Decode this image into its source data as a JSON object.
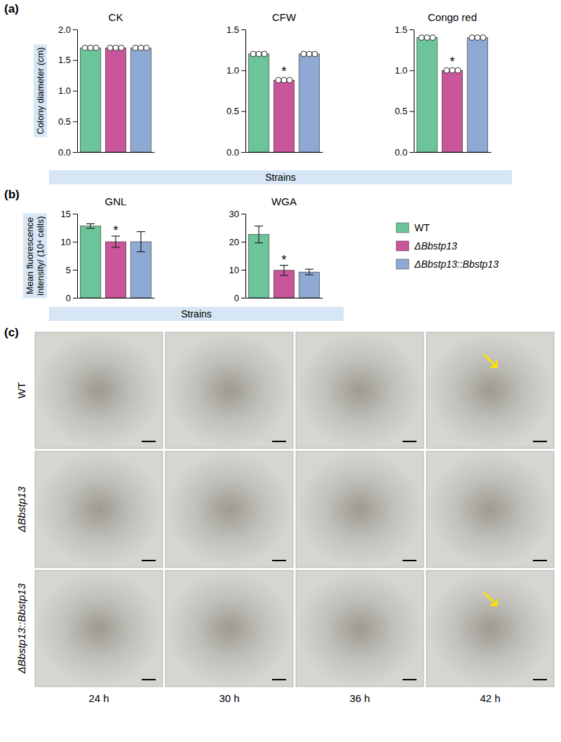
{
  "chart_data": [
    {
      "type": "bar",
      "title": "CK",
      "y_label": "Colony diameter (cm)",
      "x_label": "Strains",
      "categories": [
        null,
        null,
        null
      ],
      "values": [
        1.7,
        1.7,
        1.7
      ],
      "points": [
        [
          1.7,
          1.7,
          1.7
        ],
        [
          1.7,
          1.7,
          1.7
        ],
        [
          1.7,
          1.7,
          1.7
        ]
      ],
      "colors": [
        "#6cc49a",
        "#c9559b",
        "#8ea9d4"
      ],
      "ylim": [
        0,
        2.0
      ],
      "yticks": [
        {
          "value": 0,
          "label": "0.0"
        },
        {
          "value": 0.5,
          "label": "0.5"
        },
        {
          "value": 1.0,
          "label": "1.0"
        },
        {
          "value": 1.5,
          "label": "1.5"
        },
        {
          "value": 2.0,
          "label": "2.0"
        }
      ],
      "tick_labels": "y"
    },
    {
      "type": "bar",
      "title": "CFW",
      "categories": [
        null,
        null,
        null
      ],
      "values": [
        1.2,
        0.88,
        1.2
      ],
      "points": [
        [
          1.2,
          1.2,
          1.2
        ],
        [
          0.88,
          0.88,
          0.88
        ],
        [
          1.2,
          1.2,
          1.2
        ]
      ],
      "significance": [
        null,
        "*",
        null
      ],
      "colors": [
        "#6cc49a",
        "#c9559b",
        "#8ea9d4"
      ],
      "ylim": [
        0,
        1.5
      ],
      "yticks": [
        {
          "value": 0,
          "label": "0.0"
        },
        {
          "value": 0.5,
          "label": "0.5"
        },
        {
          "value": 1.0,
          "label": "1.0"
        },
        {
          "value": 1.5,
          "label": "1.5"
        }
      ],
      "tick_labels": "y"
    },
    {
      "type": "bar",
      "title": "Congo red",
      "categories": [
        null,
        null,
        null
      ],
      "values": [
        1.4,
        1.0,
        1.4
      ],
      "points": [
        [
          1.4,
          1.4,
          1.4
        ],
        [
          1.0,
          1.0,
          1.0
        ],
        [
          1.4,
          1.4,
          1.4
        ]
      ],
      "significance": [
        null,
        "*",
        null
      ],
      "colors": [
        "#6cc49a",
        "#c9559b",
        "#8ea9d4"
      ],
      "ylim": [
        0,
        1.5
      ],
      "yticks": [
        {
          "value": 0,
          "label": "0.0"
        },
        {
          "value": 0.5,
          "label": "0.5"
        },
        {
          "value": 1.0,
          "label": "1.0"
        },
        {
          "value": 1.5,
          "label": "1.5"
        }
      ],
      "tick_labels": "y"
    },
    {
      "type": "bar",
      "title": "GNL",
      "y_label": "Mean fluorescence intensity/ (10⁴ cells)",
      "x_label": "Strains",
      "categories": [
        null,
        null,
        null
      ],
      "values": [
        12.8,
        10.0,
        10.0
      ],
      "errors": [
        0.4,
        1.0,
        1.8
      ],
      "significance": [
        null,
        "*",
        null
      ],
      "colors": [
        "#6cc49a",
        "#c9559b",
        "#8ea9d4"
      ],
      "ylim": [
        0,
        15
      ],
      "yticks": [
        0,
        5,
        10,
        15
      ],
      "tick_labels": "y"
    },
    {
      "type": "bar",
      "title": "WGA",
      "categories": [
        null,
        null,
        null
      ],
      "values": [
        22.6,
        9.8,
        9.2
      ],
      "errors": [
        3.0,
        1.8,
        1.0
      ],
      "significance": [
        null,
        "*",
        null
      ],
      "colors": [
        "#6cc49a",
        "#c9559b",
        "#8ea9d4"
      ],
      "ylim": [
        0,
        30
      ],
      "yticks": [
        0,
        10,
        20,
        30
      ],
      "tick_labels": "y"
    }
  ],
  "panel_labels": [
    "(a)",
    "(b)",
    "(c)"
  ],
  "series_legend": {
    "position": "right",
    "entries": [
      {
        "name": "WT",
        "color": "#6cc49a"
      },
      {
        "name": "ΔBbstp13",
        "color": "#c9559b"
      },
      {
        "name": "ΔBbstp13::Bbstp13",
        "color": "#8ea9d4"
      }
    ]
  },
  "image_grid": {
    "rows": [
      "WT",
      "ΔBbstp13",
      "ΔBbstp13::Bbstp13"
    ],
    "columns": [
      "24 h",
      "30 h",
      "36 h",
      "42 h"
    ]
  }
}
